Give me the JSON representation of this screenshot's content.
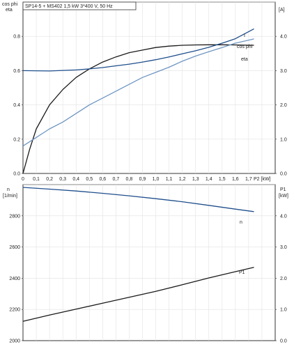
{
  "chart_data": [
    {
      "type": "line",
      "title": "SP14-5 + MS402    1,5 kW    3*400 V, 50 Hz",
      "xlabel": "P2 [kW]",
      "xlim": [
        0,
        1.9
      ],
      "x_ticks": [
        "0",
        "0,1",
        "0,2",
        "0,3",
        "0,4",
        "0,5",
        "0,6",
        "0,7",
        "0,8",
        "0,9",
        "1,0",
        "1,1",
        "1,2",
        "1,3",
        "1,4",
        "1,5",
        "1,6",
        "1,7"
      ],
      "ylabel_left": [
        "cos phi",
        "eta"
      ],
      "ylim_left": [
        0,
        1.0
      ],
      "y_left_ticks": [
        "0.0",
        "0.2",
        "0.4",
        "0.6",
        "0.8"
      ],
      "ylabel_right": "[A]",
      "ylim_right": [
        0,
        5.0
      ],
      "y_right_ticks": [
        "0.0",
        "1.0",
        "2.0",
        "3.0",
        "4.0"
      ],
      "grid": true,
      "colors": {
        "eta": "#1a1a1a",
        "I": "#1f4e8c",
        "cos_phi": "#6f96c2"
      },
      "series": [
        {
          "name": "eta",
          "axis": "left",
          "color": "#1a1a1a",
          "x": [
            0.0,
            0.05,
            0.1,
            0.2,
            0.3,
            0.4,
            0.5,
            0.6,
            0.7,
            0.8,
            0.9,
            1.0,
            1.1,
            1.2,
            1.3,
            1.4,
            1.5,
            1.6,
            1.74
          ],
          "y": [
            0.0,
            0.14,
            0.26,
            0.4,
            0.49,
            0.56,
            0.61,
            0.65,
            0.68,
            0.705,
            0.72,
            0.735,
            0.743,
            0.748,
            0.75,
            0.751,
            0.751,
            0.75,
            0.748
          ]
        },
        {
          "name": "I",
          "axis": "right",
          "color": "#1f4e8c",
          "x": [
            0.0,
            0.2,
            0.4,
            0.5,
            0.6,
            0.7,
            0.8,
            0.9,
            1.0,
            1.1,
            1.2,
            1.3,
            1.4,
            1.5,
            1.6,
            1.74
          ],
          "y": [
            3.0,
            2.99,
            3.02,
            3.05,
            3.09,
            3.14,
            3.19,
            3.25,
            3.32,
            3.4,
            3.49,
            3.58,
            3.68,
            3.8,
            3.93,
            4.22
          ]
        },
        {
          "name": "cos phi",
          "axis": "left",
          "color": "#6f96c2",
          "x": [
            0.0,
            0.1,
            0.2,
            0.3,
            0.4,
            0.5,
            0.6,
            0.7,
            0.8,
            0.9,
            1.0,
            1.1,
            1.2,
            1.3,
            1.4,
            1.5,
            1.6,
            1.74
          ],
          "y": [
            0.16,
            0.21,
            0.26,
            0.3,
            0.35,
            0.4,
            0.44,
            0.48,
            0.52,
            0.56,
            0.59,
            0.62,
            0.655,
            0.685,
            0.71,
            0.735,
            0.76,
            0.785
          ]
        }
      ]
    },
    {
      "type": "line",
      "xlim": [
        0,
        1.9
      ],
      "ylabel_left": [
        "n",
        "[1/min]"
      ],
      "ylim_left": [
        2000,
        3000
      ],
      "y_left_ticks": [
        "2000",
        "2200",
        "2400",
        "2600",
        "2800"
      ],
      "ylabel_right": [
        "P1",
        "[kW]"
      ],
      "ylim_right": [
        0,
        5.0
      ],
      "y_right_ticks": [
        "0.0",
        "1.0",
        "2.0",
        "3.0",
        "4.0"
      ],
      "grid": true,
      "colors": {
        "n": "#1f4e8c",
        "P1": "#1a1a1a"
      },
      "series": [
        {
          "name": "n",
          "axis": "left",
          "color": "#1f4e8c",
          "x": [
            0.0,
            0.2,
            0.4,
            0.6,
            0.8,
            1.0,
            1.2,
            1.4,
            1.6,
            1.74
          ],
          "y": [
            2982,
            2971,
            2959,
            2944,
            2928,
            2910,
            2890,
            2867,
            2843,
            2827
          ]
        },
        {
          "name": "P1",
          "axis": "right",
          "color": "#1a1a1a",
          "x": [
            0.0,
            0.2,
            0.4,
            0.6,
            0.8,
            1.0,
            1.2,
            1.4,
            1.6,
            1.74
          ],
          "y": [
            0.62,
            0.82,
            1.01,
            1.2,
            1.39,
            1.58,
            1.79,
            2.01,
            2.21,
            2.35
          ]
        }
      ]
    }
  ]
}
